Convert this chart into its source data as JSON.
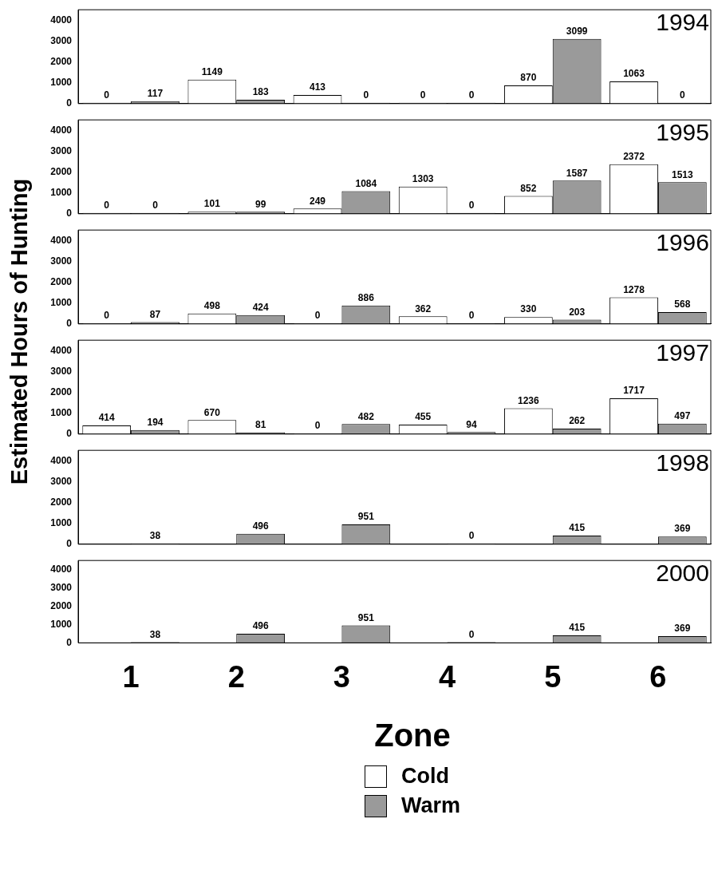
{
  "chart_data": [
    {
      "type": "bar",
      "title": "1994",
      "ylabel": "Estimated Hours of Hunting",
      "categories": [
        "1",
        "2",
        "3",
        "4",
        "5",
        "6"
      ],
      "tick_labels": "y",
      "data_labels": true,
      "ylim": [
        0,
        4500
      ],
      "yticks": [
        0,
        1000,
        2000,
        3000,
        4000
      ],
      "series": [
        {
          "color": "#ffffff",
          "values": [
            0,
            1149,
            413,
            0,
            870,
            1063
          ]
        },
        {
          "color": "#9a9a9a",
          "values": [
            117,
            183,
            0,
            0,
            3099,
            0
          ]
        }
      ]
    },
    {
      "type": "bar",
      "title": "1995",
      "categories": [
        "1",
        "2",
        "3",
        "4",
        "5",
        "6"
      ],
      "tick_labels": "y",
      "data_labels": true,
      "ylim": [
        0,
        4500
      ],
      "yticks": [
        0,
        1000,
        2000,
        3000,
        4000
      ],
      "series": [
        {
          "color": "#ffffff",
          "values": [
            0,
            101,
            249,
            1303,
            852,
            2372
          ]
        },
        {
          "color": "#9a9a9a",
          "values": [
            0,
            99,
            1084,
            0,
            1587,
            1513
          ]
        }
      ]
    },
    {
      "type": "bar",
      "title": "1996",
      "categories": [
        "1",
        "2",
        "3",
        "4",
        "5",
        "6"
      ],
      "tick_labels": "y",
      "data_labels": true,
      "ylim": [
        0,
        4500
      ],
      "yticks": [
        0,
        1000,
        2000,
        3000,
        4000
      ],
      "series": [
        {
          "color": "#ffffff",
          "values": [
            0,
            498,
            0,
            362,
            330,
            1278
          ]
        },
        {
          "color": "#9a9a9a",
          "values": [
            87,
            424,
            886,
            0,
            203,
            568
          ]
        }
      ]
    },
    {
      "type": "bar",
      "title": "1997",
      "categories": [
        "1",
        "2",
        "3",
        "4",
        "5",
        "6"
      ],
      "tick_labels": "y",
      "data_labels": true,
      "ylim": [
        0,
        4500
      ],
      "yticks": [
        0,
        1000,
        2000,
        3000,
        4000
      ],
      "series": [
        {
          "color": "#ffffff",
          "values": [
            414,
            670,
            0,
            455,
            1236,
            1717
          ]
        },
        {
          "color": "#9a9a9a",
          "values": [
            194,
            81,
            482,
            94,
            262,
            497
          ]
        }
      ]
    },
    {
      "type": "bar",
      "title": "1998",
      "categories": [
        "1",
        "2",
        "3",
        "4",
        "5",
        "6"
      ],
      "tick_labels": "y",
      "data_labels": true,
      "ylim": [
        0,
        4500
      ],
      "yticks": [
        0,
        1000,
        2000,
        3000,
        4000
      ],
      "series": [
        {
          "color": "#ffffff",
          "values": [
            null,
            null,
            null,
            null,
            null,
            null
          ]
        },
        {
          "color": "#9a9a9a",
          "values": [
            38,
            496,
            951,
            0,
            415,
            369
          ]
        }
      ]
    },
    {
      "type": "bar",
      "title": "2000",
      "xlabel": "Zone",
      "categories": [
        "1",
        "2",
        "3",
        "4",
        "5",
        "6"
      ],
      "data_labels": true,
      "ylim": [
        0,
        4500
      ],
      "yticks": [
        0,
        1000,
        2000,
        3000,
        4000
      ],
      "legend": "bottom",
      "series": [
        {
          "name": "Cold",
          "color": "#ffffff",
          "values": [
            null,
            null,
            null,
            null,
            null,
            null
          ]
        },
        {
          "name": "Warm",
          "color": "#9a9a9a",
          "values": [
            38,
            496,
            951,
            0,
            415,
            369
          ]
        }
      ]
    }
  ]
}
